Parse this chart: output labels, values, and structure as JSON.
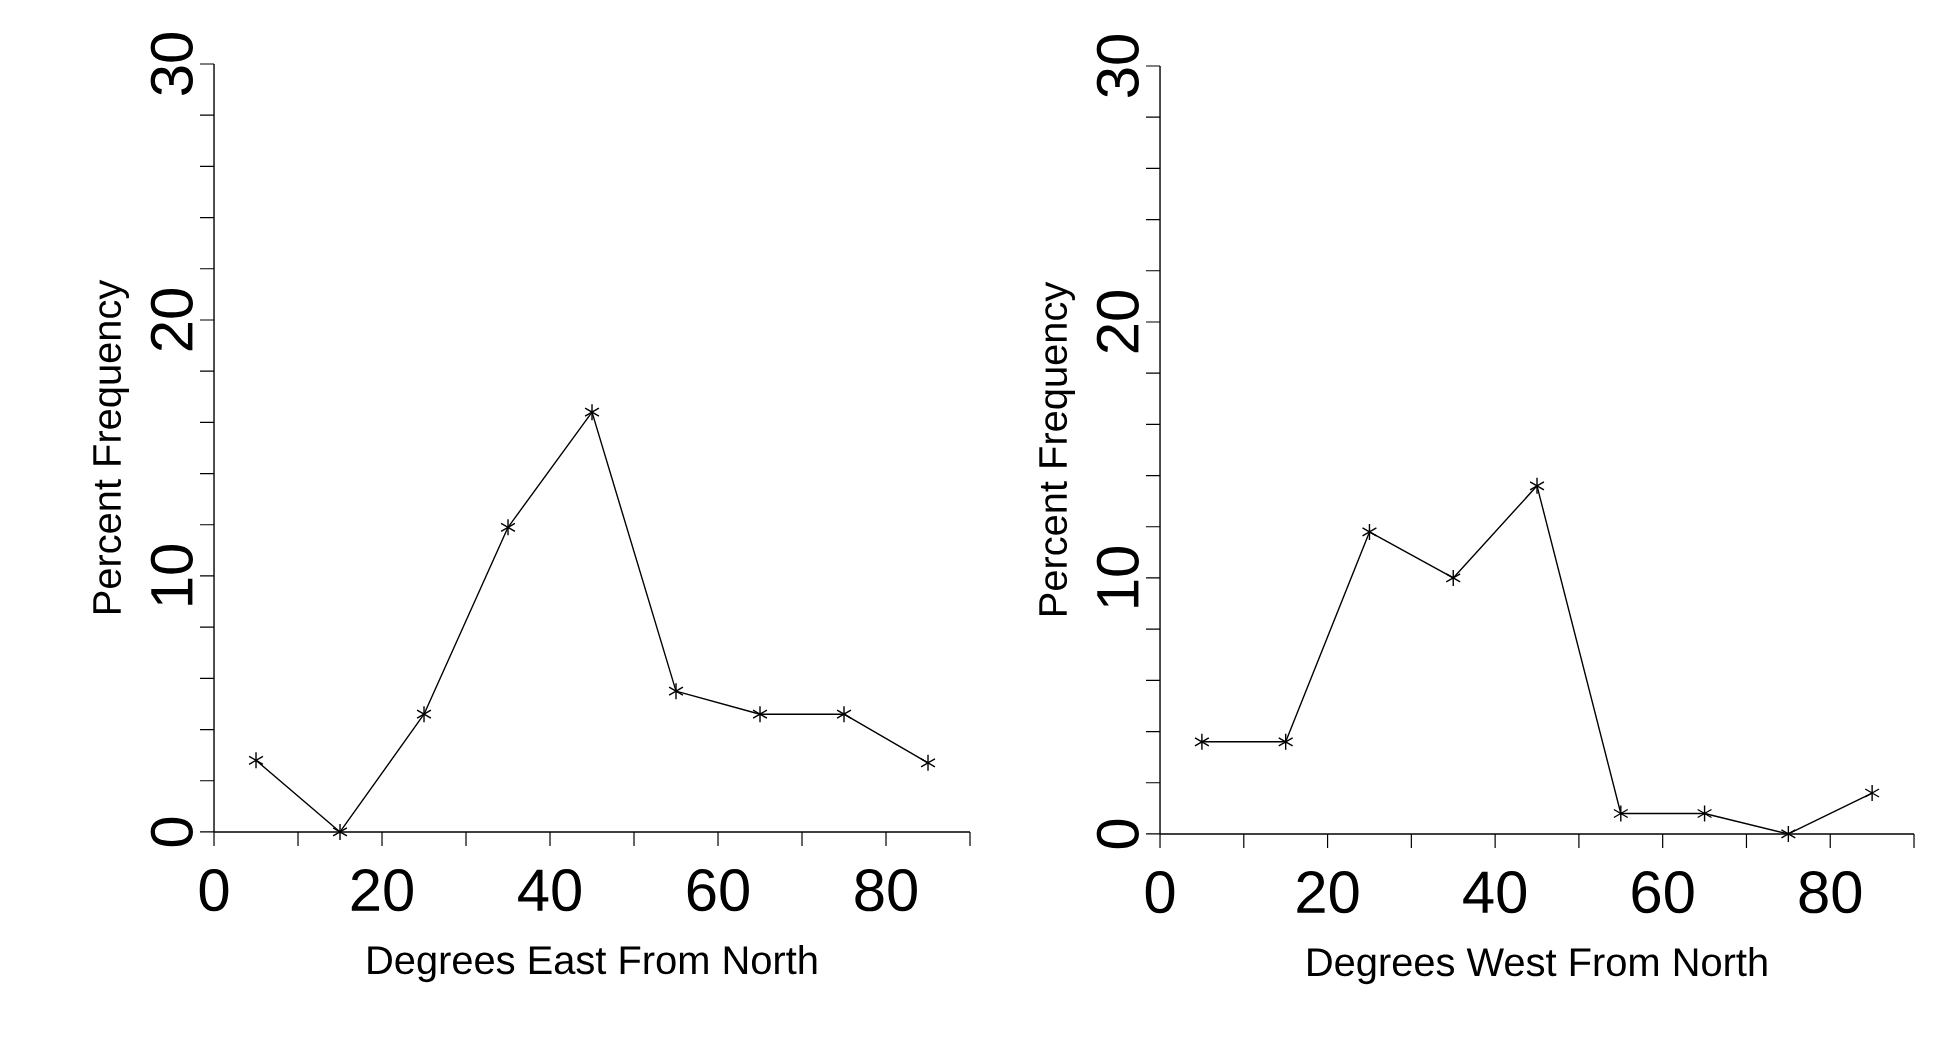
{
  "chart_data": [
    {
      "type": "line",
      "xlabel": "Degrees East From North",
      "ylabel": "Percent Frequency",
      "x": [
        5,
        15,
        25,
        35,
        45,
        55,
        65,
        75,
        85
      ],
      "series": [
        {
          "color": "#000000",
          "values": [
            2.8,
            0,
            4.6,
            11.9,
            16.4,
            5.5,
            4.6,
            4.6,
            2.7
          ]
        }
      ],
      "xlim": [
        0,
        90
      ],
      "ylim": [
        0,
        30
      ],
      "marker": "cross",
      "line_style": "solid",
      "xticks": [
        0,
        {
          "value": 10,
          "label": null
        },
        20,
        {
          "value": 30,
          "label": null
        },
        40,
        {
          "value": 50,
          "label": null
        },
        60,
        {
          "value": 70,
          "label": null
        },
        80,
        {
          "value": 90,
          "label": null
        }
      ],
      "yticks": [
        0,
        {
          "value": 2,
          "label": null
        },
        {
          "value": 4,
          "label": null
        },
        {
          "value": 6,
          "label": null
        },
        {
          "value": 8,
          "label": null
        },
        10,
        {
          "value": 12,
          "label": null
        },
        {
          "value": 14,
          "label": null
        },
        {
          "value": 16,
          "label": null
        },
        {
          "value": 18,
          "label": null
        },
        20,
        {
          "value": 22,
          "label": null
        },
        {
          "value": 24,
          "label": null
        },
        {
          "value": 26,
          "label": null
        },
        {
          "value": 28,
          "label": null
        },
        30
      ]
    },
    {
      "type": "line",
      "xlabel": "Degrees West From North",
      "ylabel": "Percent Frequency",
      "x": [
        5,
        15,
        25,
        35,
        45,
        55,
        65,
        75,
        85
      ],
      "series": [
        {
          "color": "#000000",
          "values": [
            3.6,
            3.6,
            11.8,
            10.0,
            13.6,
            0.8,
            0.8,
            0,
            1.6
          ]
        }
      ],
      "xlim": [
        0,
        90
      ],
      "ylim": [
        0,
        30
      ],
      "marker": "cross",
      "line_style": "solid",
      "xticks": [
        0,
        {
          "value": 10,
          "label": null
        },
        20,
        {
          "value": 30,
          "label": null
        },
        40,
        {
          "value": 50,
          "label": null
        },
        60,
        {
          "value": 70,
          "label": null
        },
        80,
        {
          "value": 90,
          "label": null
        }
      ],
      "yticks": [
        0,
        {
          "value": 2,
          "label": null
        },
        {
          "value": 4,
          "label": null
        },
        {
          "value": 6,
          "label": null
        },
        {
          "value": 8,
          "label": null
        },
        10,
        {
          "value": 12,
          "label": null
        },
        {
          "value": 14,
          "label": null
        },
        {
          "value": 16,
          "label": null
        },
        {
          "value": 18,
          "label": null
        },
        20,
        {
          "value": 22,
          "label": null
        },
        {
          "value": 24,
          "label": null
        },
        {
          "value": 26,
          "label": null
        },
        {
          "value": 28,
          "label": null
        },
        30
      ]
    }
  ]
}
